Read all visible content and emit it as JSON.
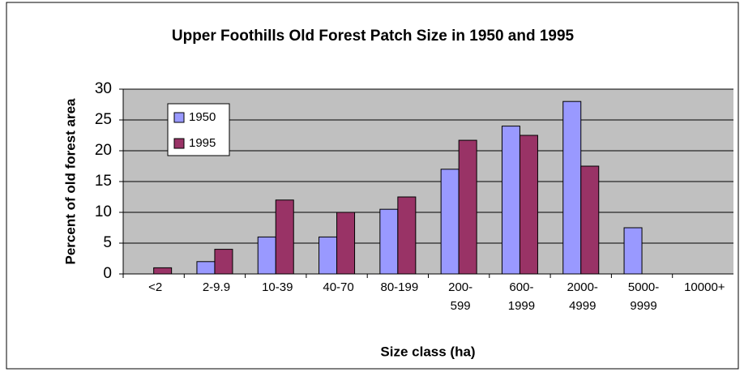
{
  "chart_data": {
    "type": "bar",
    "title": "Upper Foothills Old Forest Patch Size in 1950 and 1995",
    "x_label": "Size class (ha)",
    "y_label": "Percent of old forest area",
    "categories": [
      "<2",
      "2-9.9",
      "10-39",
      "40-70",
      "80-199",
      "200-\n599",
      "600-\n1999",
      "2000-\n4999",
      "5000-\n9999",
      "10000+"
    ],
    "series": [
      {
        "name": "1950",
        "color": "#9999ff",
        "values": [
          0,
          2,
          6,
          6,
          10.5,
          17,
          24,
          28,
          7.5,
          0
        ]
      },
      {
        "name": "1995",
        "color": "#993366",
        "values": [
          1,
          4,
          12,
          10,
          12.5,
          21.7,
          22.5,
          17.5,
          0,
          0
        ]
      }
    ],
    "ylim": [
      0,
      30
    ],
    "yticks": [
      0,
      5,
      10,
      15,
      20,
      25,
      30
    ],
    "grid": true,
    "legend": "upper left"
  }
}
